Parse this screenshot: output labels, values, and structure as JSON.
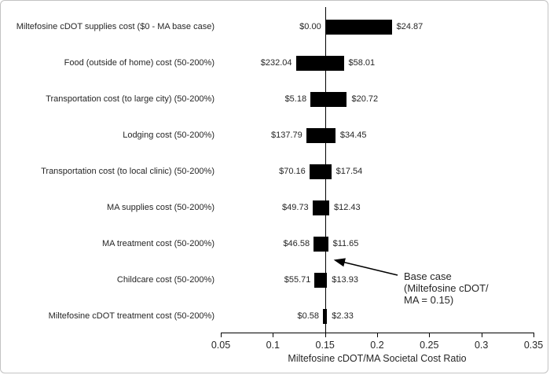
{
  "figure": {
    "background": "#ffffff",
    "border_color": "#c3c3c3",
    "bar_color": "#000000",
    "axis_color": "#000000",
    "text_color": "#262626"
  },
  "chart_data": {
    "type": "bar",
    "subtype": "tornado-sensitivity",
    "title": "",
    "xlabel": "Miltefosine cDOT/MA Societal Cost Ratio",
    "ylabel": "",
    "xlim": [
      0.05,
      0.35
    ],
    "grid": false,
    "base_case_ratio": 0.15,
    "x_ticks": [
      {
        "label": "0.05",
        "value": 0.05
      },
      {
        "label": "0.1",
        "value": 0.1
      },
      {
        "label": "0.15",
        "value": 0.15
      },
      {
        "label": "0.2",
        "value": 0.2
      },
      {
        "label": "0.25",
        "value": 0.25
      },
      {
        "label": "0.3",
        "value": 0.3
      },
      {
        "label": "0.35",
        "value": 0.35
      }
    ],
    "rows": [
      {
        "label": "Miltefosine cDOT supplies cost ($0 - MA base case)",
        "left_value_label": "$0.00",
        "right_value_label": "$24.87",
        "ratio_low": 0.15,
        "ratio_high": 0.214
      },
      {
        "label": "Food (outside of home) cost (50-200%)",
        "left_value_label": "$232.04",
        "right_value_label": "$58.01",
        "ratio_low": 0.122,
        "ratio_high": 0.168
      },
      {
        "label": "Transportation cost (to large city) (50-200%)",
        "left_value_label": "$5.18",
        "right_value_label": "$20.72",
        "ratio_low": 0.136,
        "ratio_high": 0.171
      },
      {
        "label": "Lodging cost (50-200%)",
        "left_value_label": "$137.79",
        "right_value_label": "$34.45",
        "ratio_low": 0.132,
        "ratio_high": 0.16
      },
      {
        "label": "Transportation cost (to local clinic) (50-200%)",
        "left_value_label": "$70.16",
        "right_value_label": "$17.54",
        "ratio_low": 0.135,
        "ratio_high": 0.156
      },
      {
        "label": "MA supplies cost (50-200%)",
        "left_value_label": "$49.73",
        "right_value_label": "$12.43",
        "ratio_low": 0.138,
        "ratio_high": 0.154
      },
      {
        "label": "MA treatment cost (50-200%)",
        "left_value_label": "$46.58",
        "right_value_label": "$11.65",
        "ratio_low": 0.139,
        "ratio_high": 0.153
      },
      {
        "label": "Childcare cost (50-200%)",
        "left_value_label": "$55.71",
        "right_value_label": "$13.93",
        "ratio_low": 0.14,
        "ratio_high": 0.152
      },
      {
        "label": "Miltefosine cDOT treatment cost (50-200%)",
        "left_value_label": "$0.58",
        "right_value_label": "$2.33",
        "ratio_low": 0.148,
        "ratio_high": 0.152
      }
    ],
    "annotation": {
      "lines": [
        "Base case",
        "(Miltefosine cDOT/",
        "MA = 0.15)"
      ]
    },
    "legend": null
  }
}
